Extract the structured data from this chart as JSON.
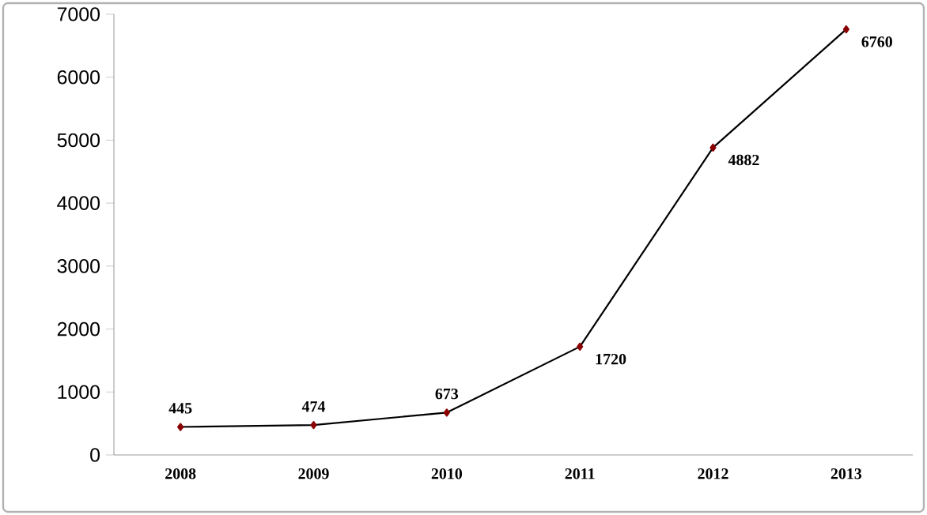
{
  "chart_data": {
    "type": "line",
    "categories": [
      "2008",
      "2009",
      "2010",
      "2011",
      "2012",
      "2013"
    ],
    "values": [
      445,
      474,
      673,
      1720,
      4882,
      6760
    ],
    "color": "#000000",
    "marker": "diamond",
    "data_labels": true,
    "ylim": [
      0,
      7000
    ],
    "yticks": [
      0,
      1000,
      2000,
      3000,
      4000,
      5000,
      6000,
      7000
    ],
    "grid": false
  }
}
